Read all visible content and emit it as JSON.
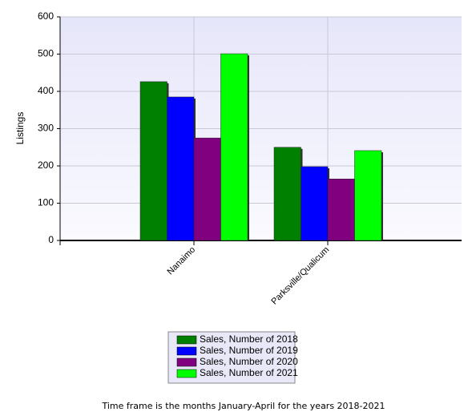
{
  "chart_data": {
    "type": "bar",
    "y_label": "Listings",
    "categories": [
      "Nanaimo",
      "Parksville/Qualicum"
    ],
    "series": [
      {
        "name": "Sales, Number of 2018",
        "color": "#008000",
        "values": [
          426,
          250
        ]
      },
      {
        "name": "Sales, Number of 2019",
        "color": "#0000ff",
        "values": [
          385,
          198
        ]
      },
      {
        "name": "Sales, Number of 2020",
        "color": "#800080",
        "values": [
          275,
          165
        ]
      },
      {
        "name": "Sales, Number of 2021",
        "color": "#00ff00",
        "values": [
          501,
          241
        ]
      }
    ],
    "ylim": [
      0,
      600
    ],
    "yticks": [
      0,
      100,
      200,
      300,
      400,
      500,
      600
    ],
    "grid": true,
    "footnote": "Time frame is the months January-April for the years 2018-2021"
  }
}
